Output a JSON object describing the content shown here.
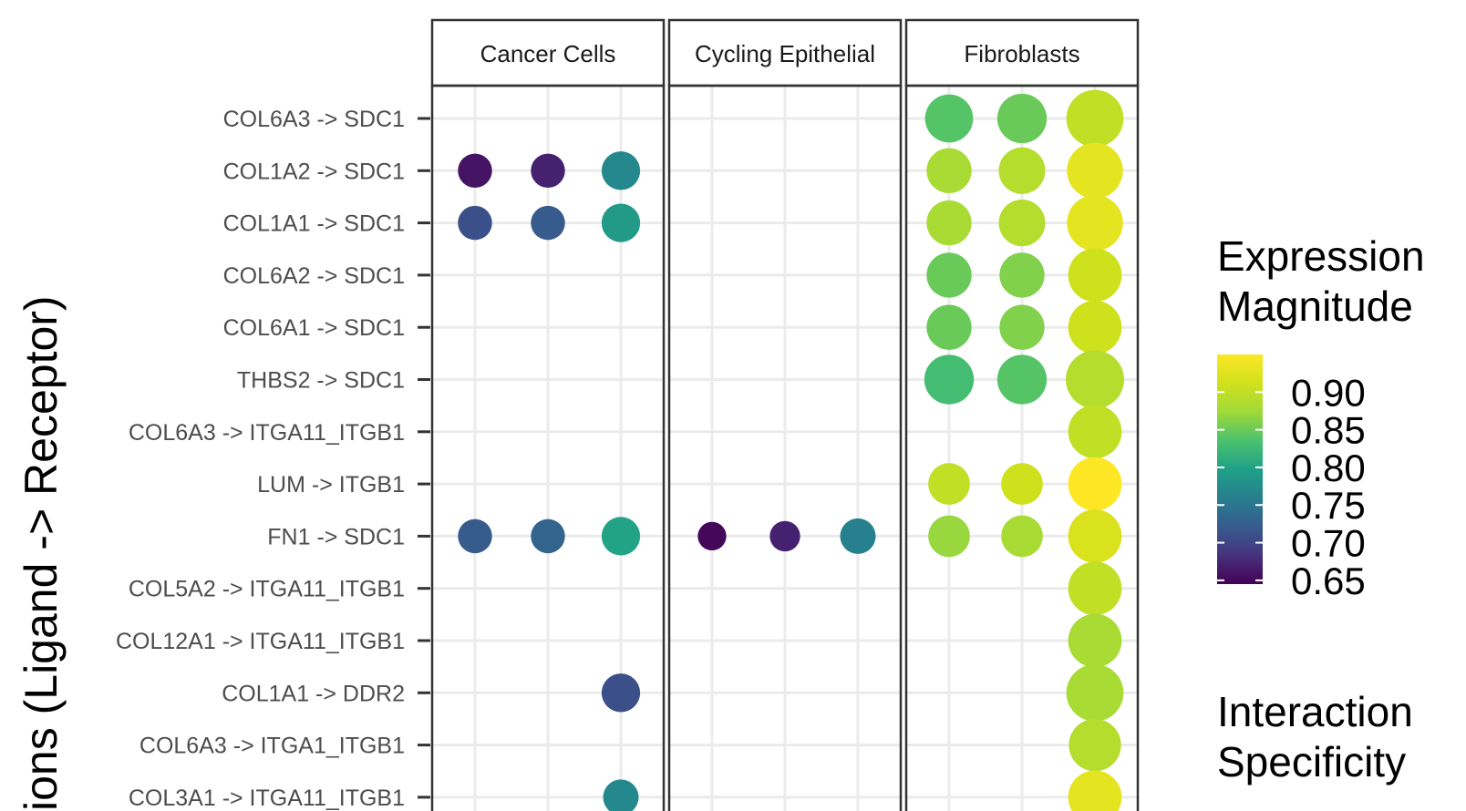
{
  "chart_data": {
    "type": "dot",
    "facets": [
      "Cancer Cells",
      "Cycling Epithelial",
      "Fibroblasts"
    ],
    "ylabel": "ions (Ligand -> Receptor)",
    "rows": [
      "COL6A3 -> SDC1",
      "COL1A2 -> SDC1",
      "COL1A1 -> SDC1",
      "COL6A2 -> SDC1",
      "COL6A1 -> SDC1",
      "THBS2 -> SDC1",
      "COL6A3 -> ITGA11_ITGB1",
      "LUM -> ITGB1",
      "FN1 -> SDC1",
      "COL5A2 -> ITGA11_ITGB1",
      "COL12A1 -> ITGA11_ITGB1",
      "COL1A1 -> DDR2",
      "COL6A3 -> ITGA1_ITGB1",
      "COL3A1 -> ITGA11_ITGB1"
    ],
    "columns_per_facet": 3,
    "points": [
      {
        "facet": "Cancer Cells",
        "col": 1,
        "row": "COL1A2 -> SDC1",
        "magnitude": 0.66,
        "specificity": 0.22
      },
      {
        "facet": "Cancer Cells",
        "col": 2,
        "row": "COL1A2 -> SDC1",
        "magnitude": 0.67,
        "specificity": 0.22
      },
      {
        "facet": "Cancer Cells",
        "col": 3,
        "row": "COL1A2 -> SDC1",
        "magnitude": 0.77,
        "specificity": 0.32
      },
      {
        "facet": "Cancer Cells",
        "col": 1,
        "row": "COL1A1 -> SDC1",
        "magnitude": 0.71,
        "specificity": 0.22
      },
      {
        "facet": "Cancer Cells",
        "col": 2,
        "row": "COL1A1 -> SDC1",
        "magnitude": 0.72,
        "specificity": 0.22
      },
      {
        "facet": "Cancer Cells",
        "col": 3,
        "row": "COL1A1 -> SDC1",
        "magnitude": 0.79,
        "specificity": 0.32
      },
      {
        "facet": "Cancer Cells",
        "col": 1,
        "row": "FN1 -> SDC1",
        "magnitude": 0.72,
        "specificity": 0.22
      },
      {
        "facet": "Cancer Cells",
        "col": 2,
        "row": "FN1 -> SDC1",
        "magnitude": 0.73,
        "specificity": 0.22
      },
      {
        "facet": "Cancer Cells",
        "col": 3,
        "row": "FN1 -> SDC1",
        "magnitude": 0.8,
        "specificity": 0.32
      },
      {
        "facet": "Cancer Cells",
        "col": 3,
        "row": "COL1A1 -> DDR2",
        "magnitude": 0.71,
        "specificity": 0.32
      },
      {
        "facet": "Cancer Cells",
        "col": 3,
        "row": "COL3A1 -> ITGA11_ITGB1",
        "magnitude": 0.77,
        "specificity": 0.25
      },
      {
        "facet": "Cycling Epithelial",
        "col": 1,
        "row": "FN1 -> SDC1",
        "magnitude": 0.65,
        "specificity": 0.12
      },
      {
        "facet": "Cycling Epithelial",
        "col": 2,
        "row": "FN1 -> SDC1",
        "magnitude": 0.67,
        "specificity": 0.15
      },
      {
        "facet": "Cycling Epithelial",
        "col": 3,
        "row": "FN1 -> SDC1",
        "magnitude": 0.76,
        "specificity": 0.25
      },
      {
        "facet": "Fibroblasts",
        "col": 1,
        "row": "COL6A3 -> SDC1",
        "magnitude": 0.84,
        "specificity": 0.6
      },
      {
        "facet": "Fibroblasts",
        "col": 2,
        "row": "COL6A3 -> SDC1",
        "magnitude": 0.85,
        "specificity": 0.65
      },
      {
        "facet": "Fibroblasts",
        "col": 3,
        "row": "COL6A3 -> SDC1",
        "magnitude": 0.9,
        "specificity": 0.95
      },
      {
        "facet": "Fibroblasts",
        "col": 1,
        "row": "COL1A2 -> SDC1",
        "magnitude": 0.88,
        "specificity": 0.5
      },
      {
        "facet": "Fibroblasts",
        "col": 2,
        "row": "COL1A2 -> SDC1",
        "magnitude": 0.89,
        "specificity": 0.55
      },
      {
        "facet": "Fibroblasts",
        "col": 3,
        "row": "COL1A2 -> SDC1",
        "magnitude": 0.93,
        "specificity": 0.9
      },
      {
        "facet": "Fibroblasts",
        "col": 1,
        "row": "COL1A1 -> SDC1",
        "magnitude": 0.88,
        "specificity": 0.5
      },
      {
        "facet": "Fibroblasts",
        "col": 2,
        "row": "COL1A1 -> SDC1",
        "magnitude": 0.89,
        "specificity": 0.55
      },
      {
        "facet": "Fibroblasts",
        "col": 3,
        "row": "COL1A1 -> SDC1",
        "magnitude": 0.93,
        "specificity": 0.9
      },
      {
        "facet": "Fibroblasts",
        "col": 1,
        "row": "COL6A2 -> SDC1",
        "magnitude": 0.85,
        "specificity": 0.5
      },
      {
        "facet": "Fibroblasts",
        "col": 2,
        "row": "COL6A2 -> SDC1",
        "magnitude": 0.86,
        "specificity": 0.5
      },
      {
        "facet": "Fibroblasts",
        "col": 3,
        "row": "COL6A2 -> SDC1",
        "magnitude": 0.91,
        "specificity": 0.8
      },
      {
        "facet": "Fibroblasts",
        "col": 1,
        "row": "COL6A1 -> SDC1",
        "magnitude": 0.85,
        "specificity": 0.5
      },
      {
        "facet": "Fibroblasts",
        "col": 2,
        "row": "COL6A1 -> SDC1",
        "magnitude": 0.86,
        "specificity": 0.5
      },
      {
        "facet": "Fibroblasts",
        "col": 3,
        "row": "COL6A1 -> SDC1",
        "magnitude": 0.91,
        "specificity": 0.8
      },
      {
        "facet": "Fibroblasts",
        "col": 1,
        "row": "THBS2 -> SDC1",
        "magnitude": 0.83,
        "specificity": 0.65
      },
      {
        "facet": "Fibroblasts",
        "col": 2,
        "row": "THBS2 -> SDC1",
        "magnitude": 0.84,
        "specificity": 0.65
      },
      {
        "facet": "Fibroblasts",
        "col": 3,
        "row": "THBS2 -> SDC1",
        "magnitude": 0.89,
        "specificity": 1.0
      },
      {
        "facet": "Fibroblasts",
        "col": 3,
        "row": "COL6A3 -> ITGA11_ITGB1",
        "magnitude": 0.9,
        "specificity": 0.8
      },
      {
        "facet": "Fibroblasts",
        "col": 1,
        "row": "LUM -> ITGB1",
        "magnitude": 0.9,
        "specificity": 0.4
      },
      {
        "facet": "Fibroblasts",
        "col": 2,
        "row": "LUM -> ITGB1",
        "magnitude": 0.91,
        "specificity": 0.4
      },
      {
        "facet": "Fibroblasts",
        "col": 3,
        "row": "LUM -> ITGB1",
        "magnitude": 0.95,
        "specificity": 0.8
      },
      {
        "facet": "Fibroblasts",
        "col": 1,
        "row": "FN1 -> SDC1",
        "magnitude": 0.87,
        "specificity": 0.4
      },
      {
        "facet": "Fibroblasts",
        "col": 2,
        "row": "FN1 -> SDC1",
        "magnitude": 0.88,
        "specificity": 0.4
      },
      {
        "facet": "Fibroblasts",
        "col": 3,
        "row": "FN1 -> SDC1",
        "magnitude": 0.92,
        "specificity": 0.8
      },
      {
        "facet": "Fibroblasts",
        "col": 3,
        "row": "COL5A2 -> ITGA11_ITGB1",
        "magnitude": 0.9,
        "specificity": 0.8
      },
      {
        "facet": "Fibroblasts",
        "col": 3,
        "row": "COL12A1 -> ITGA11_ITGB1",
        "magnitude": 0.88,
        "specificity": 0.8
      },
      {
        "facet": "Fibroblasts",
        "col": 3,
        "row": "COL1A1 -> DDR2",
        "magnitude": 0.88,
        "specificity": 0.95
      },
      {
        "facet": "Fibroblasts",
        "col": 3,
        "row": "COL6A3 -> ITGA1_ITGB1",
        "magnitude": 0.89,
        "specificity": 0.75
      },
      {
        "facet": "Fibroblasts",
        "col": 3,
        "row": "COL3A1 -> ITGA11_ITGB1",
        "magnitude": 0.93,
        "specificity": 0.8
      }
    ],
    "colorscale": "viridis",
    "color_legend": {
      "title_lines": [
        "Expression",
        "Magnitude"
      ],
      "ticks": [
        "0.90",
        "0.85",
        "0.80",
        "0.75",
        "0.70",
        "0.65"
      ],
      "range": [
        0.645,
        0.95
      ]
    },
    "size_legend": {
      "title_lines": [
        "Interaction",
        "Specificity"
      ]
    },
    "grid": true
  }
}
